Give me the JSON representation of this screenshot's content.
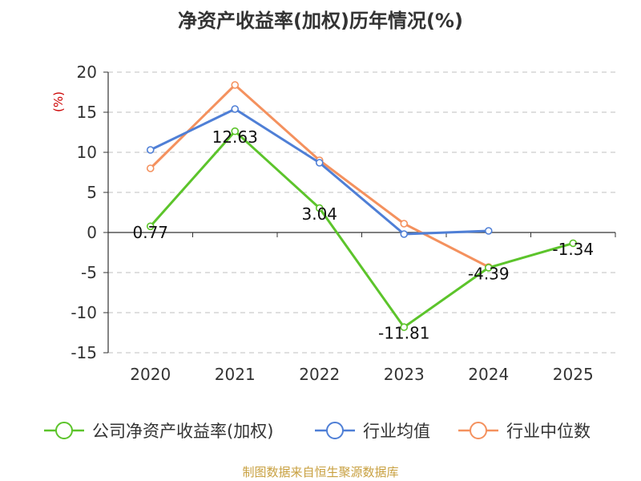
{
  "chart_data": {
    "type": "line",
    "title": "净资产收益率(加权)历年情况(%)",
    "ylabel": "(%)",
    "xlabel": "",
    "categories": [
      "2020",
      "2021",
      "2022",
      "2023",
      "2024",
      "2025"
    ],
    "ylim": [
      -15,
      20
    ],
    "yticks": [
      20,
      15,
      10,
      5,
      0,
      -5,
      -10,
      -15
    ],
    "grid": true,
    "legend_position": "bottom",
    "series": [
      {
        "name": "公司净资产收益率(加权)",
        "color": "#5cc42b",
        "values": [
          0.77,
          12.63,
          3.04,
          -11.81,
          -4.39,
          -1.34
        ],
        "labels": [
          "0.77",
          "12.63",
          "3.04",
          "-11.81",
          "-4.39",
          "-1.34"
        ]
      },
      {
        "name": "行业均值",
        "color": "#4f7fd6",
        "values": [
          10.3,
          15.4,
          8.7,
          -0.2,
          0.2,
          null
        ]
      },
      {
        "name": "行业中位数",
        "color": "#f4915e",
        "values": [
          8.0,
          18.4,
          9.0,
          1.1,
          -4.3,
          null
        ]
      }
    ],
    "source": "制图数据来自恒生聚源数据库"
  }
}
